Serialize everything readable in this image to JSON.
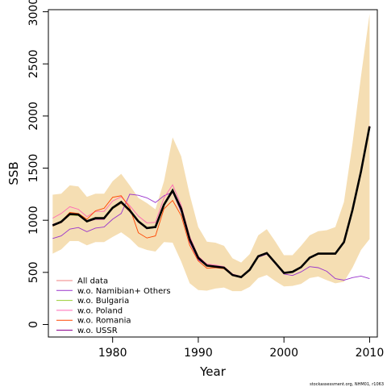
{
  "chart_data": {
    "type": "line",
    "xlabel": "Year",
    "ylabel": "SSB",
    "xlim": [
      1972.5,
      2010.9
    ],
    "ylim": [
      -120,
      3020
    ],
    "xticks": [
      1980,
      1990,
      2000,
      2010
    ],
    "yticks": [
      0,
      500,
      1000,
      1500,
      2000,
      2500,
      3000
    ],
    "footer": "stockassessment.org, NHM01, r1063",
    "colors": {
      "band": "#f5deb3",
      "all_data": "#000000",
      "axis": "#000000"
    },
    "x": [
      1973,
      1974,
      1975,
      1976,
      1977,
      1978,
      1979,
      1980,
      1981,
      1982,
      1983,
      1984,
      1985,
      1986,
      1987,
      1988,
      1989,
      1990,
      1991,
      1992,
      1993,
      1994,
      1995,
      1996,
      1997,
      1998,
      1999,
      2000,
      2001,
      2002,
      2003,
      2004,
      2005,
      2006,
      2007,
      2008,
      2009,
      2010
    ],
    "confidence_band": {
      "upper": [
        1245,
        1255,
        1335,
        1325,
        1225,
        1255,
        1255,
        1375,
        1445,
        1335,
        1215,
        1165,
        1105,
        1375,
        1795,
        1615,
        1245,
        935,
        795,
        785,
        755,
        635,
        595,
        675,
        855,
        915,
        795,
        665,
        665,
        755,
        855,
        895,
        905,
        935,
        1175,
        1735,
        2385,
        2980
      ],
      "lower": [
        680,
        720,
        800,
        800,
        760,
        790,
        790,
        840,
        885,
        825,
        745,
        715,
        700,
        790,
        785,
        605,
        395,
        330,
        325,
        345,
        355,
        320,
        320,
        360,
        445,
        475,
        415,
        365,
        370,
        390,
        445,
        460,
        425,
        395,
        410,
        545,
        715,
        820
      ]
    },
    "series": [
      {
        "name": "All data",
        "color": "#000000",
        "values": [
          950,
          985,
          1060,
          1055,
          990,
          1020,
          1020,
          1120,
          1175,
          1095,
          990,
          925,
          935,
          1150,
          1285,
          1110,
          815,
          640,
          565,
          555,
          545,
          475,
          455,
          525,
          655,
          685,
          590,
          495,
          505,
          550,
          640,
          680,
          680,
          680,
          790,
          1100,
          1470,
          1900
        ]
      },
      {
        "name": "All data",
        "color": "#f08080",
        "values": [
          945,
          975,
          1050,
          1045,
          985,
          1010,
          1010,
          1110,
          1160,
          1080,
          980,
          920,
          930,
          1140,
          1270,
          1100,
          810,
          635,
          560,
          550,
          540,
          470,
          450,
          520,
          650,
          680,
          585,
          490,
          500,
          545,
          635,
          675,
          675,
          675,
          785,
          1090,
          1455,
          1880
        ]
      },
      {
        "name": "w.o. Namibian+ Others",
        "color": "#9932cc",
        "values": [
          825,
          850,
          915,
          930,
          890,
          925,
          935,
          1010,
          1065,
          1250,
          1240,
          1215,
          1170,
          1235,
          1270,
          1080,
          790,
          620,
          565,
          555,
          550,
          480,
          460,
          525,
          645,
          675,
          580,
          485,
          470,
          505,
          555,
          545,
          510,
          440,
          425,
          450,
          465,
          440
        ]
      },
      {
        "name": "w.o. Bulgaria",
        "color": "#9acd32",
        "values": [
          950,
          980,
          1050,
          1045,
          985,
          1010,
          1015,
          1110,
          1165,
          1085,
          985,
          920,
          930,
          1145,
          1280,
          1105,
          810,
          635,
          560,
          550,
          540,
          470,
          450,
          520,
          650,
          680,
          585,
          490,
          500,
          545,
          635,
          675,
          675,
          675,
          785,
          1095,
          1460,
          1890
        ]
      },
      {
        "name": "w.o. Poland",
        "color": "#ff69b4",
        "values": [
          1020,
          1065,
          1130,
          1105,
          1035,
          1085,
          1085,
          1185,
          1225,
          1140,
          1040,
          975,
          980,
          1215,
          1340,
          1145,
          845,
          655,
          580,
          570,
          555,
          485,
          460,
          530,
          660,
          690,
          595,
          500,
          505,
          550,
          640,
          680,
          680,
          680,
          790,
          1100,
          1470,
          1905
        ]
      },
      {
        "name": "w.o. Romania",
        "color": "#ff4500",
        "values": [
          945,
          990,
          1075,
          1065,
          1010,
          1090,
          1115,
          1220,
          1235,
          1120,
          880,
          830,
          850,
          1110,
          1190,
          1045,
          760,
          610,
          540,
          545,
          535,
          470,
          450,
          520,
          650,
          680,
          585,
          490,
          500,
          545,
          635,
          675,
          675,
          675,
          785,
          1095,
          1465,
          1895
        ]
      },
      {
        "name": "w.o. USSR",
        "color": "#8b008b",
        "values": [
          960,
          990,
          1060,
          1050,
          985,
          1010,
          1010,
          1115,
          1170,
          1090,
          985,
          920,
          930,
          1145,
          1275,
          1105,
          815,
          635,
          565,
          555,
          545,
          475,
          455,
          525,
          655,
          685,
          590,
          495,
          505,
          550,
          640,
          680,
          680,
          680,
          790,
          1100,
          1470,
          1895
        ]
      }
    ],
    "legend": {
      "position": "bottom-left",
      "entries": [
        {
          "label": "All data",
          "color": "#f08080"
        },
        {
          "label": "w.o. Namibian+ Others",
          "color": "#9932cc"
        },
        {
          "label": "w.o. Bulgaria",
          "color": "#9acd32"
        },
        {
          "label": "w.o. Poland",
          "color": "#ff69b4"
        },
        {
          "label": "w.o. Romania",
          "color": "#ff4500"
        },
        {
          "label": "w.o. USSR",
          "color": "#8b008b"
        }
      ]
    }
  }
}
